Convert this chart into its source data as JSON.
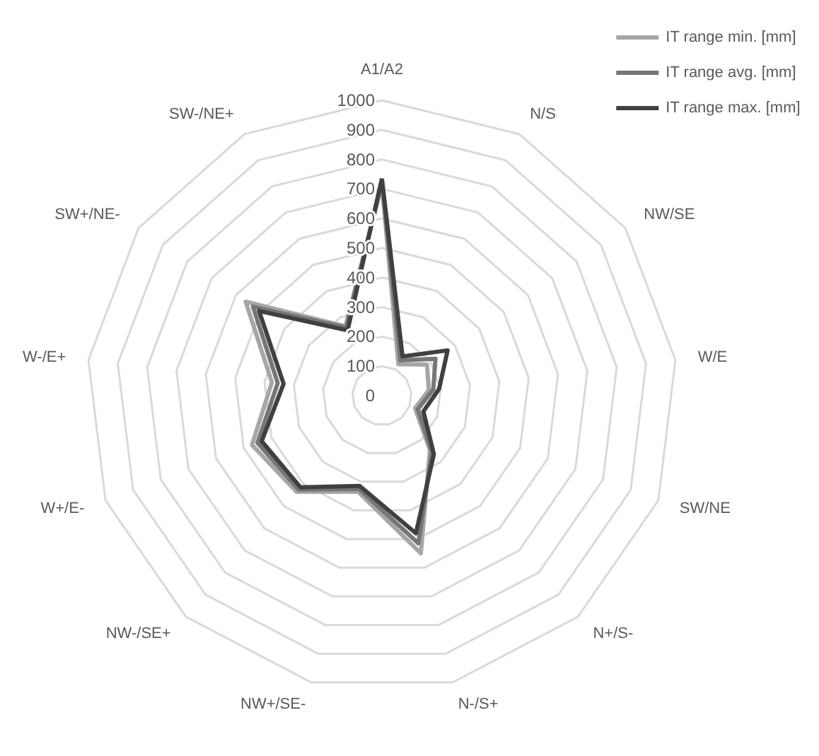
{
  "chart_data": {
    "type": "radar",
    "categories": [
      "A1/A2",
      "N/S",
      "NW/SE",
      "W/E",
      "SW/NE",
      "N+/S-",
      "N-/S+",
      "NW+/SE-",
      "NW-/SE+",
      "W+/E-",
      "W-/E+",
      "SW+/NE-",
      "SW-/NE+"
    ],
    "series": [
      {
        "name": "IT range min. [mm]",
        "color": "#a6a6a6",
        "values": [
          715,
          120,
          185,
          160,
          120,
          245,
          550,
          335,
          435,
          470,
          375,
          560,
          265
        ]
      },
      {
        "name": "IT range avg. [mm]",
        "color": "#767676",
        "values": [
          725,
          135,
          220,
          175,
          130,
          255,
          515,
          325,
          425,
          450,
          355,
          530,
          260
        ]
      },
      {
        "name": "IT range max. [mm]",
        "color": "#404040",
        "values": [
          735,
          150,
          270,
          195,
          150,
          265,
          480,
          315,
          415,
          435,
          335,
          505,
          250
        ]
      }
    ],
    "ylim": [
      0,
      1000
    ],
    "yticks": [
      0,
      100,
      200,
      300,
      400,
      500,
      600,
      700,
      800,
      900,
      1000
    ],
    "grid": true,
    "legend": "top right",
    "marker": "none",
    "line_style": "solid"
  }
}
